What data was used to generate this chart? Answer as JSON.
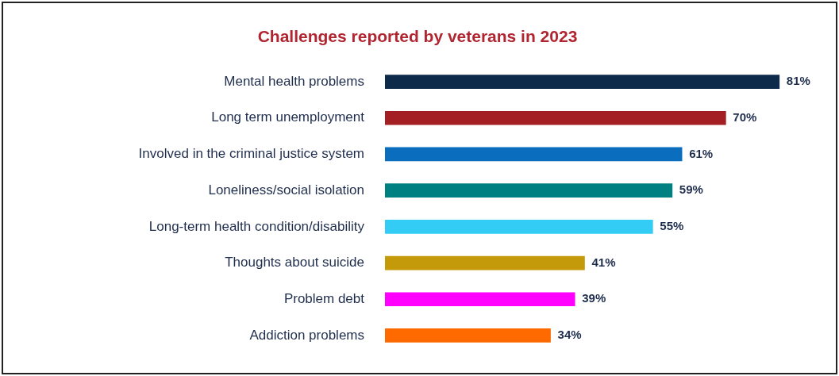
{
  "chart_data": {
    "type": "bar",
    "orientation": "horizontal",
    "title": "Challenges reported by veterans in 2023",
    "categories": [
      "Mental health problems",
      "Long term unemployment",
      "Involved in the criminal justice system",
      "Loneliness/social isolation",
      "Long-term health condition/disability",
      "Thoughts about suicide",
      "Problem debt",
      "Addiction problems"
    ],
    "values": [
      81,
      70,
      61,
      59,
      55,
      41,
      39,
      34
    ],
    "value_labels": [
      "81%",
      "70%",
      "61%",
      "59%",
      "55%",
      "41%",
      "39%",
      "34%"
    ],
    "colors": [
      "#0d2a4a",
      "#a31f24",
      "#0b6dbd",
      "#008080",
      "#33ccf5",
      "#c59a0a",
      "#ff00ff",
      "#ff6a00"
    ]
  }
}
